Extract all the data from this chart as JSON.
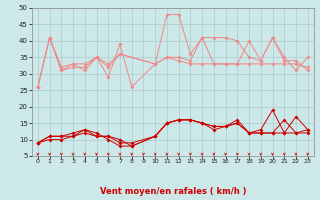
{
  "x": [
    0,
    1,
    2,
    3,
    4,
    5,
    6,
    7,
    8,
    9,
    10,
    11,
    12,
    13,
    14,
    15,
    16,
    17,
    18,
    19,
    20,
    21,
    22,
    23
  ],
  "series_light": [
    [
      26,
      41,
      31,
      32,
      32,
      35,
      29,
      39,
      26,
      null,
      33,
      35,
      34,
      33,
      33,
      33,
      33,
      33,
      33,
      33,
      33,
      33,
      33,
      32
    ],
    [
      26,
      41,
      32,
      33,
      31,
      35,
      32,
      36,
      null,
      null,
      33,
      35,
      35,
      34,
      41,
      41,
      41,
      40,
      35,
      34,
      41,
      35,
      31,
      35
    ],
    [
      26,
      41,
      31,
      33,
      33,
      35,
      33,
      36,
      null,
      null,
      33,
      48,
      48,
      36,
      41,
      33,
      33,
      33,
      40,
      34,
      41,
      34,
      34,
      31
    ]
  ],
  "series_dark": [
    [
      9,
      10,
      10,
      11,
      12,
      11,
      11,
      9,
      9,
      null,
      11,
      15,
      16,
      16,
      15,
      14,
      14,
      16,
      12,
      12,
      12,
      16,
      12,
      12
    ],
    [
      9,
      11,
      11,
      11,
      13,
      12,
      10,
      8,
      8,
      null,
      11,
      15,
      16,
      16,
      15,
      13,
      14,
      15,
      12,
      13,
      19,
      12,
      17,
      13
    ],
    [
      9,
      11,
      11,
      12,
      13,
      11,
      11,
      10,
      8,
      null,
      11,
      15,
      16,
      16,
      15,
      14,
      14,
      15,
      12,
      12,
      12,
      12,
      12,
      13
    ]
  ],
  "background_color": "#cce8e8",
  "grid_color": "#aacccc",
  "light_color": "#f08888",
  "dark_color": "#cc0000",
  "xlabel": "Vent moyen/en rafales ( km/h )",
  "ylim": [
    5,
    50
  ],
  "yticks": [
    5,
    10,
    15,
    20,
    25,
    30,
    35,
    40,
    45,
    50
  ],
  "xticks": [
    0,
    1,
    2,
    3,
    4,
    5,
    6,
    7,
    8,
    9,
    10,
    11,
    12,
    13,
    14,
    15,
    16,
    17,
    18,
    19,
    20,
    21,
    22,
    23
  ]
}
